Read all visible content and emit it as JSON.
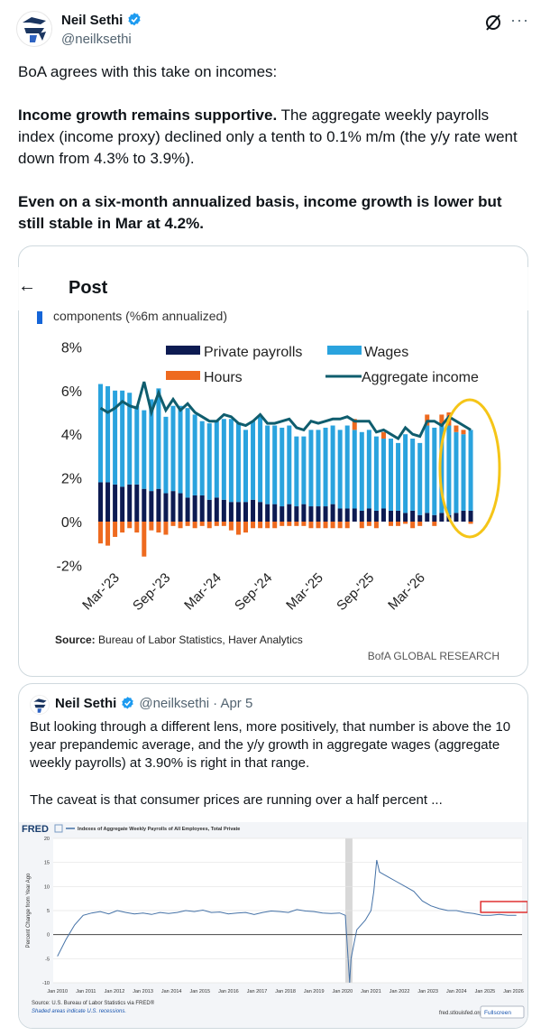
{
  "post": {
    "author": {
      "name": "Neil Sethi",
      "handle": "@neilksethi"
    },
    "text1": "BoA agrees with this take on incomes:",
    "text2_bold": "Income growth remains supportive.",
    "text2_rest": " The aggregate weekly payrolls index (income proxy) declined only a tenth to 0.1% m/m (the y/y rate went down from 4.3% to 3.9%).",
    "text3_bold": "Even on a six-month annualized basis, income growth is lower but still stable in Mar at 4.2%.",
    "more_label": "···"
  },
  "header_overlay": {
    "back_label": "←",
    "title": "Post"
  },
  "chart_data": [
    {
      "type": "bar",
      "title": "components (%6m annualized)",
      "ylim": [
        -2,
        8
      ],
      "yticks": [
        "8%",
        "6%",
        "4%",
        "2%",
        "0%",
        "-2%"
      ],
      "xticks": [
        "Mar-'23",
        "Sep-'23",
        "Mar-'24",
        "Sep-'24",
        "Mar-'25",
        "Sep-'25",
        "Mar-'26"
      ],
      "legend": [
        "Private payrolls",
        "Wages",
        "Hours",
        "Aggregate income"
      ],
      "series": [
        {
          "name": "Private payrolls",
          "color": "#0d1b52",
          "values": [
            1.8,
            1.8,
            1.7,
            1.6,
            1.7,
            1.7,
            1.5,
            1.4,
            1.5,
            1.3,
            1.4,
            1.3,
            1.1,
            1.2,
            1.2,
            1.0,
            1.1,
            1.0,
            0.9,
            0.9,
            0.9,
            1.0,
            0.9,
            0.8,
            0.8,
            0.7,
            0.8,
            0.7,
            0.8,
            0.7,
            0.7,
            0.7,
            0.8,
            0.6,
            0.6,
            0.6,
            0.5,
            0.6,
            0.5,
            0.6,
            0.5,
            0.5,
            0.4,
            0.5,
            0.3,
            0.4,
            0.3,
            0.4,
            0.3,
            0.4,
            0.5,
            0.5
          ]
        },
        {
          "name": "Wages",
          "color": "#2aa3de",
          "values": [
            4.5,
            4.4,
            4.3,
            4.4,
            4.2,
            3.6,
            3.6,
            4.2,
            4.6,
            3.5,
            3.9,
            4.0,
            4.1,
            3.7,
            3.4,
            3.5,
            3.5,
            3.7,
            3.8,
            3.6,
            3.3,
            3.6,
            3.9,
            3.6,
            3.6,
            3.6,
            3.6,
            3.2,
            3.1,
            3.5,
            3.5,
            3.6,
            3.6,
            3.6,
            3.8,
            3.6,
            3.6,
            3.6,
            3.4,
            3.2,
            3.3,
            3.1,
            3.6,
            3.3,
            3.3,
            4.0,
            4.0,
            4.0,
            4.1,
            3.7,
            3.5,
            3.7
          ]
        },
        {
          "name": "Hours",
          "color": "#ee6a1f",
          "values": [
            -1.0,
            -1.1,
            -0.7,
            -0.5,
            -0.3,
            -0.5,
            -1.6,
            -0.4,
            -0.5,
            -0.6,
            -0.2,
            -0.3,
            -0.2,
            -0.3,
            -0.2,
            -0.3,
            -0.2,
            -0.2,
            -0.4,
            -0.6,
            -0.5,
            -0.3,
            -0.3,
            -0.3,
            -0.3,
            -0.2,
            -0.2,
            -0.2,
            -0.2,
            -0.3,
            -0.3,
            -0.3,
            -0.3,
            -0.3,
            -0.3,
            0.5,
            -0.3,
            -0.2,
            -0.3,
            0.3,
            -0.2,
            -0.2,
            -0.1,
            -0.3,
            -0.2,
            0.5,
            -0.2,
            0.5,
            0.6,
            0.3,
            0.2,
            -0.1
          ]
        },
        {
          "name": "Aggregate income",
          "color": "#0f5d6e",
          "values": [
            5.2,
            5.0,
            5.2,
            5.5,
            5.3,
            5.2,
            6.4,
            5.0,
            5.9,
            5.1,
            5.6,
            5.1,
            5.4,
            5.0,
            4.8,
            4.6,
            4.6,
            4.9,
            4.8,
            4.5,
            4.4,
            4.6,
            4.9,
            4.5,
            4.5,
            4.6,
            4.7,
            4.3,
            4.2,
            4.6,
            4.5,
            4.6,
            4.7,
            4.7,
            4.8,
            4.6,
            4.6,
            4.6,
            4.1,
            4.2,
            4.0,
            3.8,
            4.3,
            4.0,
            3.9,
            4.6,
            4.6,
            4.4,
            4.8,
            4.6,
            4.4,
            4.2
          ]
        }
      ],
      "source_bold": "Source:",
      "source_rest": " Bureau of Labor Statistics, Haver Analytics",
      "credit": "BofA GLOBAL RESEARCH"
    },
    {
      "type": "line",
      "title": "Indexes of Aggregate Weekly Payrolls of All Employees, Total Private",
      "ylabel": "Percent Change from Year Ago",
      "ylim": [
        -10,
        20
      ],
      "yticks": [
        "20",
        "15",
        "10",
        "5",
        "0",
        "-5",
        "-10"
      ],
      "xticks": [
        "Jan 2010",
        "Jan 2011",
        "Jan 2012",
        "Jan 2013",
        "Jan 2014",
        "Jan 2015",
        "Jan 2016",
        "Jan 2017",
        "Jan 2018",
        "Jan 2019",
        "Jan 2020",
        "Jan 2021",
        "Jan 2022",
        "Jan 2023",
        "Jan 2024",
        "Jan 2025",
        "Jan 2026"
      ],
      "x": [
        2010.0,
        2010.3,
        2010.6,
        2010.9,
        2011.2,
        2011.5,
        2011.8,
        2012.1,
        2012.4,
        2012.7,
        2013.0,
        2013.3,
        2013.6,
        2013.9,
        2014.2,
        2014.5,
        2014.8,
        2015.1,
        2015.4,
        2015.7,
        2016.0,
        2016.3,
        2016.6,
        2016.9,
        2017.2,
        2017.5,
        2017.8,
        2018.1,
        2018.4,
        2018.7,
        2019.0,
        2019.3,
        2019.6,
        2019.9,
        2020.1,
        2020.25,
        2020.3,
        2020.5,
        2020.8,
        2021.0,
        2021.1,
        2021.2,
        2021.3,
        2021.6,
        2021.9,
        2022.2,
        2022.5,
        2022.8,
        2023.1,
        2023.4,
        2023.7,
        2024.0,
        2024.3,
        2024.6,
        2024.9,
        2025.2,
        2025.5,
        2025.8,
        2026.1
      ],
      "values": [
        -4.5,
        -1,
        2,
        4,
        4.5,
        4.8,
        4.3,
        5,
        4.6,
        4.3,
        4.5,
        4.2,
        4.6,
        4.4,
        4.6,
        5,
        4.8,
        5.1,
        4.6,
        4.7,
        4.3,
        4.5,
        4.6,
        4.2,
        4.6,
        4.9,
        4.8,
        4.6,
        5.2,
        4.9,
        4.8,
        4.5,
        4.4,
        4.5,
        4,
        -10,
        -5,
        1,
        3,
        5,
        9,
        15.5,
        13,
        12,
        11,
        10,
        9,
        7,
        6,
        5.4,
        5,
        5,
        4.6,
        4.4,
        4,
        4,
        4.2,
        4,
        4
      ],
      "highlight_box": true,
      "source": "Source: U.S. Bureau of Labor Statistics via FRED®",
      "note": "Shaded areas indicate U.S. recessions.",
      "site": "fred.stlouisfed.org",
      "fullscreen_label": "Fullscreen"
    }
  ],
  "quote": {
    "author": "Neil Sethi",
    "handle": "@neilksethi",
    "time": "· Apr 5",
    "text1": "But looking through a different lens, more positively, that number is above the 10 year prepandemic average, and the y/y growth in aggregate wages (aggregate weekly payrolls) at 3.90% is right in that range.",
    "text2": "The caveat is that consumer prices are running over a half percent  ..."
  }
}
